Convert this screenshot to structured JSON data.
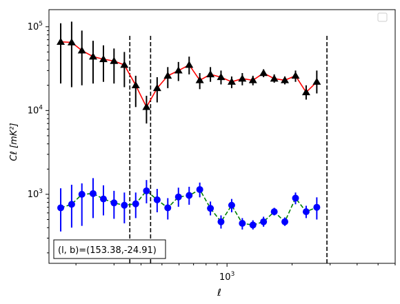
{
  "chart_data": {
    "type": "line",
    "xscale": "log",
    "yscale": "log",
    "xlim": [
      150,
      6000
    ],
    "ylim": [
      150,
      160000
    ],
    "xlabel": "ℓ",
    "ylabel": "Cℓ  [mK²]",
    "x_tick_labels": [
      {
        "value": 1000,
        "base": "10",
        "exp": "3"
      }
    ],
    "y_tick_labels": [
      {
        "value": 1000,
        "base": "10",
        "exp": "3"
      },
      {
        "value": 10000,
        "base": "10",
        "exp": "4"
      },
      {
        "value": 100000,
        "base": "10",
        "exp": "5"
      }
    ],
    "annotation": "(l, b)=(153.38,-24.91)",
    "legend": {
      "placement": "top-right",
      "entries": []
    },
    "vlines": [
      {
        "x": 355,
        "ymin": 150,
        "ymax": 78000
      },
      {
        "x": 443,
        "ymin": 150,
        "ymax": 78000
      },
      {
        "x": 2900,
        "ymin": 150,
        "ymax": 78000
      }
    ],
    "series": [
      {
        "color": "#ff0000",
        "marker": "triangle",
        "marker_color": "#000000",
        "linestyle": "solid",
        "errorbar_color": "#000000",
        "points": [
          {
            "x": 170,
            "y": 66000,
            "lo": 21000,
            "hi": 110000
          },
          {
            "x": 191,
            "y": 65000,
            "lo": 19000,
            "hi": 115000
          },
          {
            "x": 213,
            "y": 52000,
            "lo": 20000,
            "hi": 90000
          },
          {
            "x": 240,
            "y": 44000,
            "lo": 21000,
            "hi": 68000
          },
          {
            "x": 268,
            "y": 41000,
            "lo": 22000,
            "hi": 60000
          },
          {
            "x": 300,
            "y": 39000,
            "lo": 21000,
            "hi": 55000
          },
          {
            "x": 335,
            "y": 35000,
            "lo": 19000,
            "hi": 50000
          },
          {
            "x": 378,
            "y": 20000,
            "lo": 11000,
            "hi": 26000
          },
          {
            "x": 424,
            "y": 11000,
            "lo": 7000,
            "hi": 15000
          },
          {
            "x": 475,
            "y": 18500,
            "lo": 12500,
            "hi": 25000
          },
          {
            "x": 532,
            "y": 26000,
            "lo": 18500,
            "hi": 33000
          },
          {
            "x": 596,
            "y": 30000,
            "lo": 22500,
            "hi": 38000
          },
          {
            "x": 668,
            "y": 35000,
            "lo": 27000,
            "hi": 44000
          },
          {
            "x": 748,
            "y": 23000,
            "lo": 18000,
            "hi": 28000
          },
          {
            "x": 838,
            "y": 27000,
            "lo": 22000,
            "hi": 33000
          },
          {
            "x": 938,
            "y": 25000,
            "lo": 20500,
            "hi": 30000
          },
          {
            "x": 1051,
            "y": 22000,
            "lo": 18500,
            "hi": 25500
          },
          {
            "x": 1177,
            "y": 24000,
            "lo": 20000,
            "hi": 28000
          },
          {
            "x": 1318,
            "y": 23000,
            "lo": 20000,
            "hi": 26000
          },
          {
            "x": 1476,
            "y": 28000,
            "lo": 25000,
            "hi": 31000
          },
          {
            "x": 1654,
            "y": 24000,
            "lo": 21500,
            "hi": 27000
          },
          {
            "x": 1852,
            "y": 23000,
            "lo": 20500,
            "hi": 25500
          },
          {
            "x": 2075,
            "y": 26000,
            "lo": 22000,
            "hi": 30000
          },
          {
            "x": 2324,
            "y": 16500,
            "lo": 13500,
            "hi": 20000
          },
          {
            "x": 2603,
            "y": 22000,
            "lo": 16000,
            "hi": 30000
          }
        ]
      },
      {
        "color": "#008000",
        "marker": "circle",
        "marker_color": "#0000ff",
        "linestyle": "dashed",
        "errorbar_color": "#0000ff",
        "points": [
          {
            "x": 170,
            "y": 690,
            "lo": 360,
            "hi": 1180
          },
          {
            "x": 191,
            "y": 760,
            "lo": 400,
            "hi": 1300
          },
          {
            "x": 213,
            "y": 1000,
            "lo": 420,
            "hi": 1350
          },
          {
            "x": 240,
            "y": 1020,
            "lo": 520,
            "hi": 1560
          },
          {
            "x": 268,
            "y": 880,
            "lo": 560,
            "hi": 1280
          },
          {
            "x": 300,
            "y": 790,
            "lo": 510,
            "hi": 1100
          },
          {
            "x": 335,
            "y": 740,
            "lo": 450,
            "hi": 1050
          },
          {
            "x": 378,
            "y": 770,
            "lo": 520,
            "hi": 1050
          },
          {
            "x": 424,
            "y": 1100,
            "lo": 780,
            "hi": 1480
          },
          {
            "x": 475,
            "y": 860,
            "lo": 610,
            "hi": 1160
          },
          {
            "x": 532,
            "y": 690,
            "lo": 500,
            "hi": 900
          },
          {
            "x": 596,
            "y": 930,
            "lo": 710,
            "hi": 1200
          },
          {
            "x": 668,
            "y": 970,
            "lo": 750,
            "hi": 1230
          },
          {
            "x": 748,
            "y": 1140,
            "lo": 920,
            "hi": 1380
          },
          {
            "x": 838,
            "y": 680,
            "lo": 560,
            "hi": 820
          },
          {
            "x": 938,
            "y": 470,
            "lo": 390,
            "hi": 560
          },
          {
            "x": 1051,
            "y": 740,
            "lo": 610,
            "hi": 880
          },
          {
            "x": 1177,
            "y": 450,
            "lo": 380,
            "hi": 520
          },
          {
            "x": 1318,
            "y": 430,
            "lo": 380,
            "hi": 490
          },
          {
            "x": 1476,
            "y": 470,
            "lo": 410,
            "hi": 540
          },
          {
            "x": 1654,
            "y": 620,
            "lo": 560,
            "hi": 690
          },
          {
            "x": 1852,
            "y": 470,
            "lo": 420,
            "hi": 530
          },
          {
            "x": 2075,
            "y": 900,
            "lo": 760,
            "hi": 1050
          },
          {
            "x": 2324,
            "y": 620,
            "lo": 520,
            "hi": 730
          },
          {
            "x": 2603,
            "y": 700,
            "lo": 500,
            "hi": 920
          }
        ]
      }
    ]
  }
}
